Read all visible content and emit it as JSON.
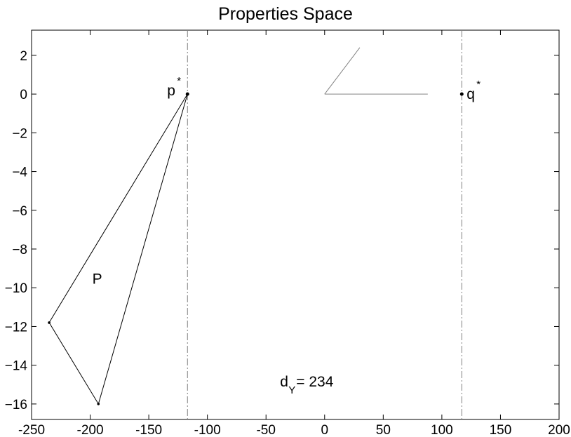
{
  "chart_data": {
    "type": "line",
    "title": "Properties Space",
    "xlim": [
      -250,
      200
    ],
    "ylim": [
      -16.8,
      3.3
    ],
    "xticks": [
      -250,
      -200,
      -150,
      -100,
      -50,
      0,
      50,
      100,
      150,
      200
    ],
    "xtick_labels": [
      "-250",
      "-200",
      "-150",
      "-100",
      "-50",
      "0",
      "50",
      "100",
      "150",
      "200"
    ],
    "yticks": [
      2,
      0,
      -2,
      -4,
      -6,
      -8,
      -10,
      -12,
      -14,
      -16
    ],
    "ytick_labels": [
      "2",
      "0",
      "−2",
      "−4",
      "−6",
      "−8",
      "−10",
      "−12",
      "−14",
      "−16"
    ],
    "grid": false,
    "polygon_P": {
      "label": "P",
      "vertices": [
        [
          -117,
          0
        ],
        [
          -235,
          -11.8
        ],
        [
          -193,
          -16
        ],
        [
          -117,
          0
        ]
      ]
    },
    "points": [
      {
        "name": "p",
        "sup": "*",
        "x": -117,
        "y": 0
      },
      {
        "name": "q",
        "sup": "*",
        "x": 117,
        "y": 0
      }
    ],
    "vertical_lines": [
      {
        "x": -117,
        "style": "dash-dot"
      },
      {
        "x": 117,
        "style": "dash-dot"
      }
    ],
    "angle_marker": {
      "vertex": [
        0,
        0
      ],
      "arm1_end": [
        30,
        2.4
      ],
      "arm2_end": [
        88,
        0
      ]
    },
    "annotations": {
      "d_main": "d",
      "d_sub": "Y",
      "d_rest": " = 234",
      "d_anchor": [
        -38,
        -15.1
      ],
      "P_anchor": [
        -194,
        -9.8
      ]
    },
    "colors": {
      "axes": "#000000",
      "polygon": "#000000",
      "vline": "#808080",
      "angle": "#808080"
    }
  }
}
